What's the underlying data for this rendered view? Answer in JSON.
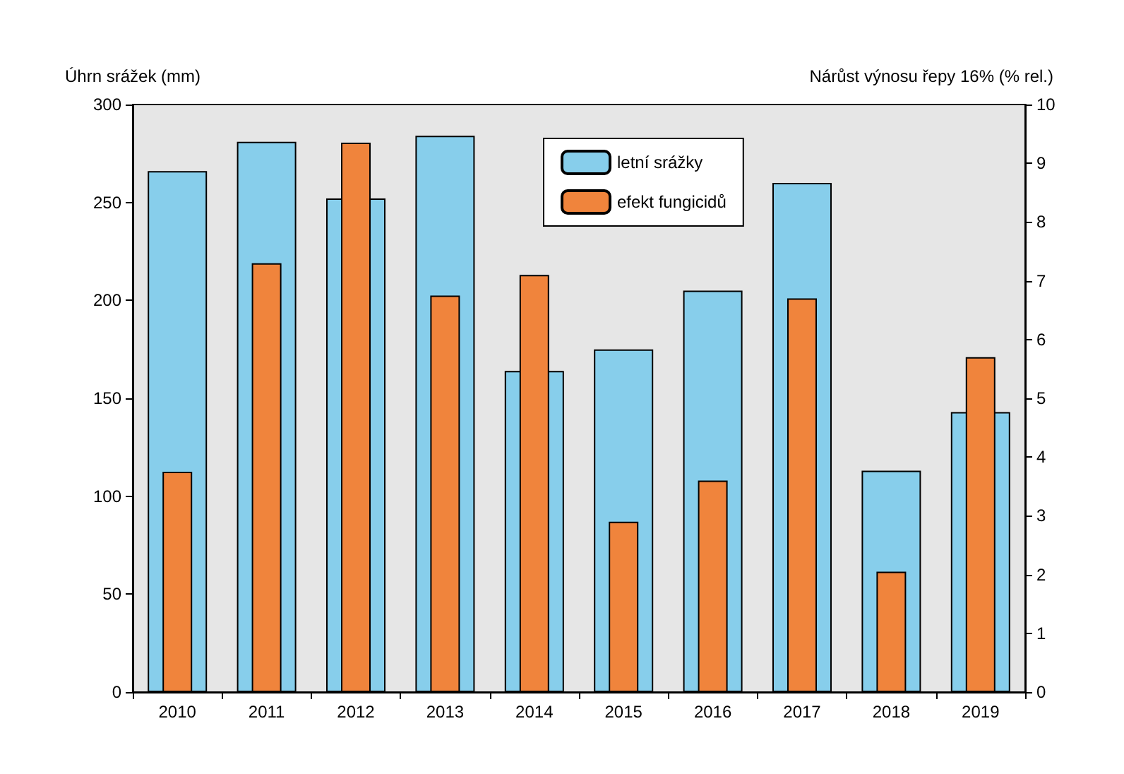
{
  "chart_data": {
    "type": "bar",
    "ylabel": "Úhrn srážek (mm)",
    "y2label": "Nárůst výnosu řepy 16% (% rel.)",
    "categories": [
      "2010",
      "2011",
      "2012",
      "2013",
      "2014",
      "2015",
      "2016",
      "2017",
      "2018",
      "2019"
    ],
    "series": [
      {
        "name": "letní srážky",
        "color": "#87ceeb",
        "values": [
          266,
          281,
          252,
          284,
          164,
          175,
          205,
          260,
          113,
          143
        ]
      },
      {
        "name": "efekt fungicidů",
        "color": "#f0843c",
        "axis": "y2",
        "values": [
          3.75,
          7.3,
          9.35,
          6.75,
          7.1,
          2.9,
          3.6,
          6.7,
          2.05,
          5.7
        ]
      }
    ],
    "ylim": [
      0,
      300
    ],
    "yticks": [
      0,
      50,
      100,
      150,
      200,
      250,
      300
    ],
    "y2lim": [
      0,
      10
    ],
    "y2ticks": [
      0,
      1,
      2,
      3,
      4,
      5,
      6,
      7,
      8,
      9,
      10
    ],
    "grid": false,
    "legend": "top"
  }
}
